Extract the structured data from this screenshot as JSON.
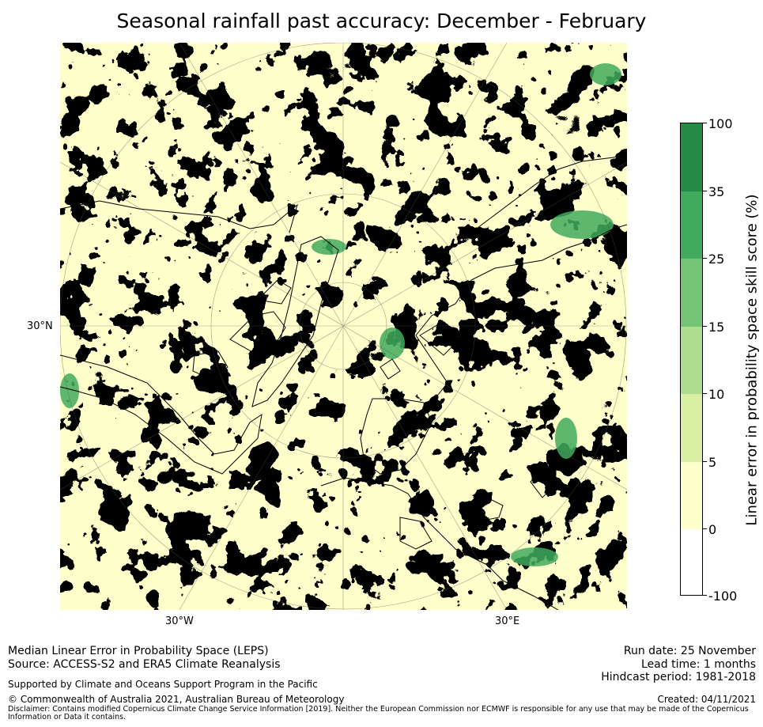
{
  "title": "Seasonal rainfall past accuracy: December - February",
  "map": {
    "projection": "North Polar Stereographic",
    "grid_labels": {
      "lat_30n": "30°N",
      "lon_30w": "30°W",
      "lon_30e": "30°E"
    }
  },
  "colorbar": {
    "title": "Linear error in probability space skill score (%)",
    "ticks": [
      "100",
      "35",
      "25",
      "15",
      "10",
      "5",
      "0",
      "-100"
    ],
    "bins": [
      {
        "range": "35 to 100",
        "color": "#238b45"
      },
      {
        "range": "25 to 35",
        "color": "#41ab5d"
      },
      {
        "range": "15 to 25",
        "color": "#74c476"
      },
      {
        "range": "10 to 15",
        "color": "#addd8e"
      },
      {
        "range": "5 to 10",
        "color": "#d9f0a3"
      },
      {
        "range": "0 to 5",
        "color": "#ffffcc"
      },
      {
        "range": "-100 to 0",
        "color": "#ffffff"
      }
    ]
  },
  "footer": {
    "line1": "Median Linear Error in Probability Space (LEPS)",
    "line2": "Source: ACCESS-S2 and ERA5 Climate Reanalysis",
    "support": "Supported by Climate and Oceans Support Program in the Pacific",
    "copyright": "© Commonwealth of Australia 2021, Australian Bureau of Meteorology",
    "disclaimer": "Disclaimer: Contains modified Copernicus Climate Change Service Information [2019]. Neither the European Commission nor ECMWF is responsible for any use that may be made of the Copernicus Information or Data it contains.",
    "run_date": "Run date: 25 November",
    "lead_time": "Lead time: 1 months",
    "hindcast": "Hindcast period: 1981-2018",
    "created": "Created: 04/11/2021"
  }
}
